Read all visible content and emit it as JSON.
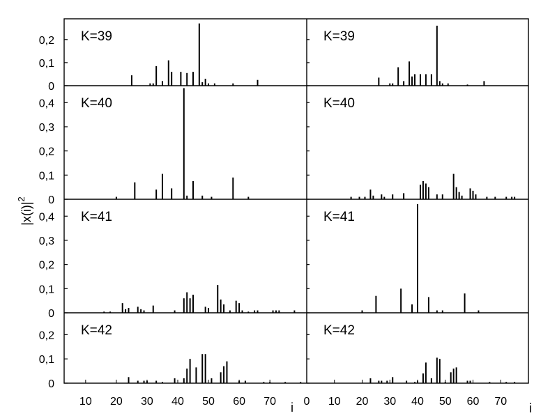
{
  "chart_data": {
    "type": "bar",
    "ylabel": "|x(i)|",
    "ylabel_superscript": "2",
    "xlabel": "i",
    "columns": [
      {
        "xlim": [
          3,
          82
        ],
        "xticks": [
          10,
          20,
          30,
          40,
          50,
          60,
          70
        ],
        "xtick_labels": [
          "10",
          "20",
          "30",
          "40",
          "50",
          "60",
          "70"
        ]
      },
      {
        "xlim": [
          0,
          80
        ],
        "xticks": [
          0,
          10,
          20,
          30,
          40,
          50,
          60,
          70
        ],
        "xtick_labels": [
          "0",
          "10",
          "20",
          "30",
          "40",
          "50",
          "60",
          "70"
        ]
      }
    ],
    "rows": [
      {
        "label": "K=39",
        "ylim": [
          0,
          0.29
        ],
        "yticks": [
          0,
          0.1,
          0.2
        ],
        "ytick_labels": [
          "0",
          "0,1",
          "0,2"
        ]
      },
      {
        "label": "K=40",
        "ylim": [
          0,
          0.47
        ],
        "yticks": [
          0,
          0.1,
          0.2,
          0.3,
          0.4
        ],
        "ytick_labels": [
          "0",
          "0,1",
          "0,2",
          "0,3",
          "0,4"
        ]
      },
      {
        "label": "K=41",
        "ylim": [
          0,
          0.47
        ],
        "yticks": [
          0,
          0.1,
          0.2,
          0.3,
          0.4
        ],
        "ytick_labels": [
          "0",
          "0,1",
          "0,2",
          "0,3",
          "0,4"
        ]
      },
      {
        "label": "K=42",
        "ylim": [
          0,
          0.29
        ],
        "yticks": [
          0,
          0.1,
          0.2
        ],
        "ytick_labels": [
          "0",
          "0,1",
          "0,2"
        ]
      }
    ],
    "panels": [
      {
        "row": 0,
        "col": 0,
        "label": "K=39",
        "x": [
          25,
          31,
          32,
          33,
          35,
          37,
          38,
          41,
          43,
          45,
          47,
          48,
          49,
          50,
          52,
          58,
          66
        ],
        "y": [
          0.045,
          0.01,
          0.01,
          0.085,
          0.02,
          0.11,
          0.06,
          0.06,
          0.055,
          0.06,
          0.27,
          0.015,
          0.03,
          0.01,
          0.01,
          0.01,
          0.025
        ]
      },
      {
        "row": 0,
        "col": 1,
        "label": "K=39",
        "x": [
          26,
          30,
          31,
          33,
          35,
          37,
          38,
          39,
          41,
          43,
          45,
          47,
          48,
          49,
          51,
          58,
          64
        ],
        "y": [
          0.035,
          0.01,
          0.01,
          0.08,
          0.02,
          0.105,
          0.04,
          0.05,
          0.05,
          0.05,
          0.05,
          0.26,
          0.02,
          0.01,
          0.01,
          0.005,
          0.02
        ]
      },
      {
        "row": 1,
        "col": 0,
        "label": "K=40",
        "x": [
          20,
          26,
          33,
          35,
          38,
          42,
          43,
          45,
          48,
          51,
          58,
          63
        ],
        "y": [
          0.01,
          0.07,
          0.04,
          0.105,
          0.045,
          0.46,
          0.015,
          0.075,
          0.015,
          0.01,
          0.09,
          0.01
        ]
      },
      {
        "row": 1,
        "col": 1,
        "label": "K=40",
        "x": [
          16,
          19,
          21,
          23,
          24,
          27,
          28,
          31,
          35,
          41,
          42,
          43,
          44,
          47,
          49,
          53,
          54,
          55,
          56,
          59,
          60,
          61,
          65,
          68,
          72,
          74,
          75
        ],
        "y": [
          0.01,
          0.01,
          0.01,
          0.04,
          0.015,
          0.02,
          0.01,
          0.02,
          0.025,
          0.06,
          0.075,
          0.065,
          0.05,
          0.02,
          0.02,
          0.105,
          0.05,
          0.03,
          0.015,
          0.045,
          0.035,
          0.02,
          0.01,
          0.01,
          0.01,
          0.01,
          0.01
        ]
      },
      {
        "row": 2,
        "col": 0,
        "label": "K=41",
        "x": [
          16,
          18,
          22,
          23,
          24,
          27,
          28,
          29,
          32,
          39,
          42,
          43,
          44,
          45,
          49,
          50,
          53,
          54,
          55,
          57,
          59,
          60,
          61,
          63,
          65,
          66,
          71,
          72,
          73,
          78
        ],
        "y": [
          0.005,
          0.005,
          0.04,
          0.015,
          0.02,
          0.025,
          0.015,
          0.01,
          0.03,
          0.01,
          0.06,
          0.085,
          0.06,
          0.075,
          0.025,
          0.02,
          0.115,
          0.055,
          0.035,
          0.01,
          0.05,
          0.04,
          0.01,
          0.005,
          0.01,
          0.01,
          0.01,
          0.01,
          0.01,
          0.01
        ]
      },
      {
        "row": 2,
        "col": 1,
        "label": "K=41",
        "x": [
          20,
          25,
          34,
          38,
          40,
          44,
          47,
          49,
          57,
          62
        ],
        "y": [
          0.01,
          0.07,
          0.1,
          0.035,
          0.45,
          0.065,
          0.01,
          0.01,
          0.08,
          0.01
        ]
      },
      {
        "row": 3,
        "col": 0,
        "label": "K=42",
        "x": [
          24,
          27,
          29,
          30,
          33,
          35,
          39,
          42,
          43,
          44,
          46,
          48,
          49,
          51,
          54,
          55,
          56,
          60,
          62,
          68,
          70,
          75,
          80
        ],
        "y": [
          0.025,
          0.01,
          0.01,
          0.01,
          0.01,
          0.005,
          0.02,
          0.02,
          0.06,
          0.1,
          0.065,
          0.12,
          0.12,
          0.02,
          0.045,
          0.07,
          0.09,
          0.01,
          0.01,
          0.005,
          0.005,
          0.005,
          0.005
        ]
      },
      {
        "row": 3,
        "col": 1,
        "label": "K=42",
        "x": [
          23,
          26,
          27,
          29,
          31,
          36,
          39,
          40,
          42,
          43,
          45,
          47,
          48,
          50,
          52,
          53,
          54,
          58,
          59,
          66,
          72,
          75
        ],
        "y": [
          0.02,
          0.01,
          0.01,
          0.01,
          0.025,
          0.01,
          0.005,
          0.01,
          0.04,
          0.085,
          0.02,
          0.105,
          0.1,
          0.005,
          0.045,
          0.06,
          0.065,
          0.01,
          0.01,
          0.005,
          0.005,
          0.005
        ]
      }
    ]
  }
}
